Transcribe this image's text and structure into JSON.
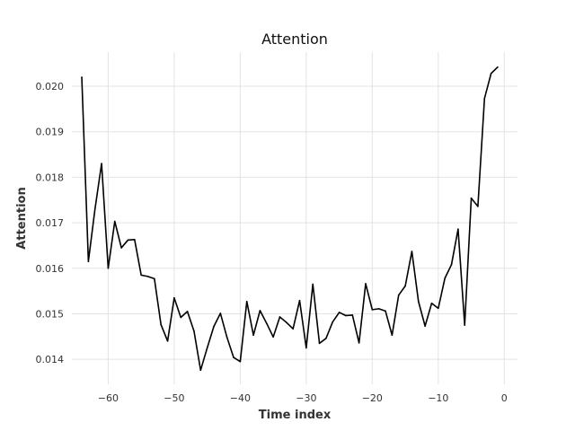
{
  "chart_data": {
    "type": "line",
    "title": "Attention",
    "xlabel": "Time index",
    "ylabel": "Attention",
    "xlim": [
      -65.5,
      2
    ],
    "ylim": [
      0.01345,
      0.02075
    ],
    "xticks": [
      -60,
      -50,
      -40,
      -30,
      -20,
      -10,
      0
    ],
    "xtick_labels": [
      "−60",
      "−50",
      "−40",
      "−30",
      "−20",
      "−10",
      "0"
    ],
    "yticks": [
      0.014,
      0.015,
      0.016,
      0.017,
      0.018,
      0.019,
      0.02
    ],
    "ytick_labels": [
      "0.014",
      "0.015",
      "0.016",
      "0.017",
      "0.018",
      "0.019",
      "0.020"
    ],
    "grid": true,
    "line_color": "#000000",
    "series": [
      {
        "x": [
          -64,
          -63,
          -62,
          -61,
          -60,
          -59,
          -58,
          -57,
          -56,
          -55,
          -54,
          -53,
          -52,
          -51,
          -50,
          -49,
          -48,
          -47,
          -46,
          -45,
          -44,
          -43,
          -42,
          -41,
          -40,
          -39,
          -38,
          -37,
          -36,
          -35,
          -34,
          -33,
          -32,
          -31,
          -30,
          -29,
          -28,
          -27,
          -26,
          -25,
          -24,
          -23,
          -22,
          -21,
          -20,
          -19,
          -18,
          -17,
          -16,
          -15,
          -14,
          -13,
          -12,
          -11,
          -10,
          -9,
          -8,
          -7,
          -6,
          -5,
          -4,
          -3,
          -2,
          -1
        ],
        "values": [
          0.0202,
          0.01615,
          0.0173,
          0.0183,
          0.016,
          0.01703,
          0.01645,
          0.01662,
          0.01663,
          0.01585,
          0.01582,
          0.01577,
          0.01476,
          0.0144,
          0.01535,
          0.01492,
          0.01505,
          0.01462,
          0.01376,
          0.01425,
          0.01472,
          0.01501,
          0.01448,
          0.01404,
          0.01395,
          0.01527,
          0.01453,
          0.01507,
          0.01479,
          0.01449,
          0.01493,
          0.01481,
          0.01467,
          0.01529,
          0.01425,
          0.01565,
          0.01435,
          0.01446,
          0.01482,
          0.01503,
          0.01496,
          0.01497,
          0.01436,
          0.01566,
          0.01509,
          0.01511,
          0.01506,
          0.01453,
          0.01541,
          0.01561,
          0.01637,
          0.01527,
          0.01473,
          0.01523,
          0.01512,
          0.01578,
          0.01608,
          0.01686,
          0.01475,
          0.01754,
          0.01736,
          0.01973,
          0.02028,
          0.02042
        ]
      }
    ]
  }
}
